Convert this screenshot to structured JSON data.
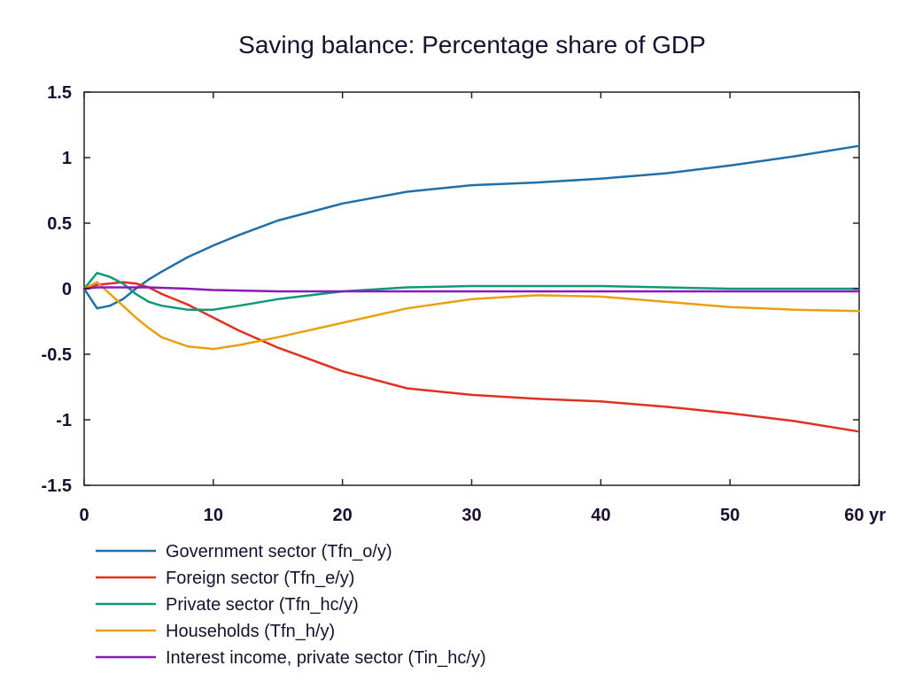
{
  "chart_data": {
    "type": "line",
    "title": "Saving balance: Percentage share of GDP",
    "x_unit_label": "yr",
    "xlim": [
      0,
      60
    ],
    "ylim": [
      -1.5,
      1.5
    ],
    "x_ticks": [
      0,
      10,
      20,
      30,
      40,
      50,
      60
    ],
    "y_ticks": [
      1.5,
      1,
      0.5,
      0,
      -0.5,
      -1,
      -1.5
    ],
    "x_tick_labels": [
      "0",
      "10",
      "20",
      "30",
      "40",
      "50",
      "60 yr"
    ],
    "y_tick_labels": [
      "1.5",
      "1",
      "0.5",
      "0",
      "-0.5",
      "-1",
      "-1.5"
    ],
    "grid": false,
    "legend_position": "bottom",
    "series": [
      {
        "name": "Government sector (Tfn_o/y)",
        "color": "#1f6fa8",
        "x": [
          0,
          1,
          2,
          3,
          4,
          5,
          6,
          8,
          10,
          12,
          15,
          20,
          25,
          30,
          35,
          40,
          45,
          50,
          55,
          60
        ],
        "y": [
          0,
          -0.15,
          -0.13,
          -0.08,
          0.0,
          0.07,
          0.13,
          0.24,
          0.33,
          0.41,
          0.52,
          0.65,
          0.74,
          0.79,
          0.81,
          0.84,
          0.88,
          0.94,
          1.01,
          1.09
        ]
      },
      {
        "name": "Foreign sector (Tfn_e/y)",
        "color": "#e03020",
        "x": [
          0,
          1,
          2,
          3,
          4,
          5,
          6,
          8,
          10,
          12,
          15,
          20,
          25,
          30,
          35,
          40,
          45,
          50,
          55,
          60
        ],
        "y": [
          0,
          0.03,
          0.04,
          0.05,
          0.04,
          0.01,
          -0.04,
          -0.12,
          -0.22,
          -0.32,
          -0.45,
          -0.63,
          -0.76,
          -0.81,
          -0.84,
          -0.86,
          -0.9,
          -0.95,
          -1.01,
          -1.09
        ]
      },
      {
        "name": "Private sector (Tfn_hc/y)",
        "color": "#109878",
        "x": [
          0,
          1,
          2,
          3,
          4,
          5,
          6,
          8,
          10,
          12,
          15,
          20,
          25,
          30,
          35,
          40,
          45,
          50,
          55,
          60
        ],
        "y": [
          0,
          0.12,
          0.09,
          0.04,
          -0.04,
          -0.1,
          -0.13,
          -0.16,
          -0.16,
          -0.13,
          -0.08,
          -0.02,
          0.01,
          0.02,
          0.02,
          0.02,
          0.01,
          0.0,
          0.0,
          0.0
        ]
      },
      {
        "name": "Households (Tfn_h/y)",
        "color": "#e8a010",
        "x": [
          0,
          1,
          2,
          3,
          4,
          5,
          6,
          8,
          10,
          12,
          15,
          20,
          25,
          30,
          35,
          40,
          45,
          50,
          55,
          60
        ],
        "y": [
          0,
          0.05,
          -0.04,
          -0.13,
          -0.22,
          -0.3,
          -0.37,
          -0.44,
          -0.46,
          -0.43,
          -0.37,
          -0.26,
          -0.15,
          -0.08,
          -0.05,
          -0.06,
          -0.1,
          -0.14,
          -0.16,
          -0.17
        ]
      },
      {
        "name": "Interest income, private sector (Tin_hc/y)",
        "color": "#8a1ab8",
        "x": [
          0,
          1,
          2,
          3,
          5,
          8,
          10,
          15,
          20,
          25,
          30,
          35,
          40,
          45,
          50,
          55,
          60
        ],
        "y": [
          0,
          0.01,
          0.01,
          0.01,
          0.01,
          0.0,
          -0.01,
          -0.02,
          -0.02,
          -0.02,
          -0.02,
          -0.02,
          -0.02,
          -0.02,
          -0.02,
          -0.02,
          -0.02
        ]
      }
    ]
  }
}
